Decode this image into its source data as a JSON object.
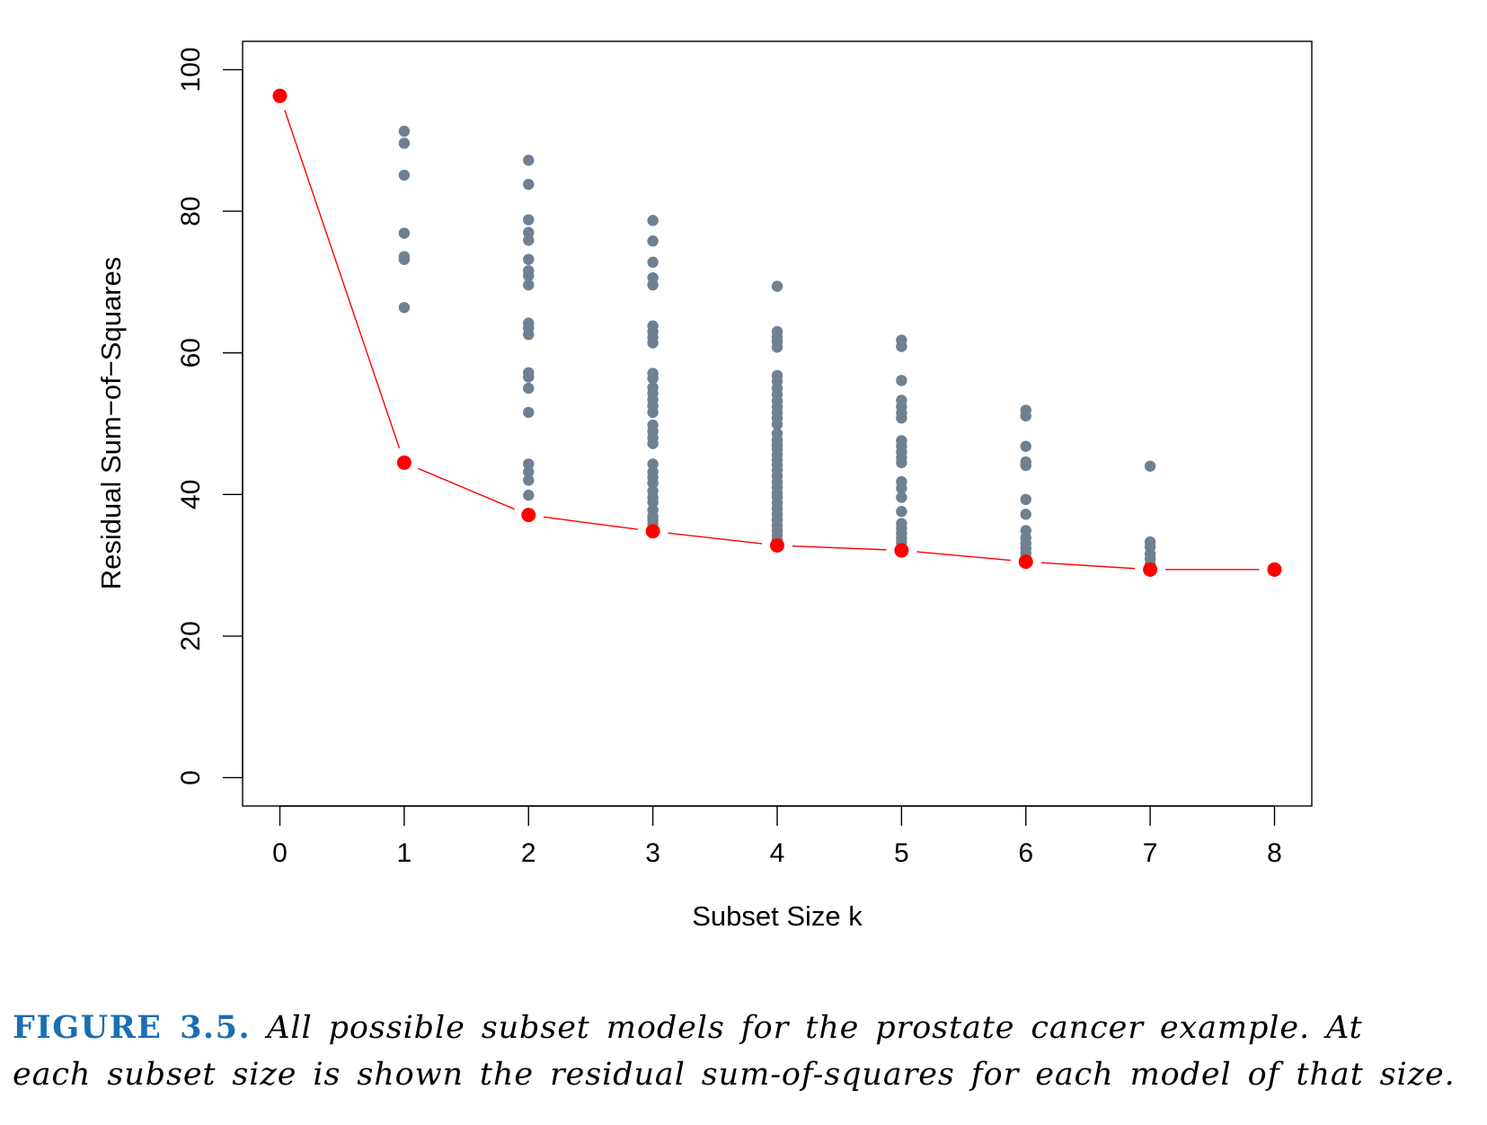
{
  "chart_data": {
    "type": "scatter",
    "xlabel": "Subset Size k",
    "ylabel": "Residual Sum−of−Squares",
    "xlim": [
      -0.3,
      8.3
    ],
    "ylim": [
      -4,
      104
    ],
    "x_ticks": [
      0,
      1,
      2,
      3,
      4,
      5,
      6,
      7,
      8
    ],
    "y_ticks": [
      0,
      20,
      40,
      60,
      80,
      100
    ],
    "grid": false,
    "colors": {
      "all_models": "#708090",
      "best_models": "#ff0000",
      "best_line": "#ff0000"
    },
    "series": [
      {
        "role": "all-models",
        "points": [
          [
            1,
            91.3
          ],
          [
            1,
            89.6
          ],
          [
            1,
            85.1
          ],
          [
            1,
            76.9
          ],
          [
            1,
            73.6
          ],
          [
            1,
            73.2
          ],
          [
            1,
            66.4
          ],
          [
            1,
            44.5
          ],
          [
            2,
            87.2
          ],
          [
            2,
            83.8
          ],
          [
            2,
            78.8
          ],
          [
            2,
            77.0
          ],
          [
            2,
            75.9
          ],
          [
            2,
            73.2
          ],
          [
            2,
            71.6
          ],
          [
            2,
            70.9
          ],
          [
            2,
            69.6
          ],
          [
            2,
            64.2
          ],
          [
            2,
            63.5
          ],
          [
            2,
            62.6
          ],
          [
            2,
            57.2
          ],
          [
            2,
            56.6
          ],
          [
            2,
            55.0
          ],
          [
            2,
            51.6
          ],
          [
            2,
            44.3
          ],
          [
            2,
            43.2
          ],
          [
            2,
            42.0
          ],
          [
            2,
            39.9
          ],
          [
            2,
            37.1
          ],
          [
            3,
            78.7
          ],
          [
            3,
            75.8
          ],
          [
            3,
            72.8
          ],
          [
            3,
            70.6
          ],
          [
            3,
            69.6
          ],
          [
            3,
            63.8
          ],
          [
            3,
            63.0
          ],
          [
            3,
            62.2
          ],
          [
            3,
            61.4
          ],
          [
            3,
            57.1
          ],
          [
            3,
            56.4
          ],
          [
            3,
            55.1
          ],
          [
            3,
            54.3
          ],
          [
            3,
            53.4
          ],
          [
            3,
            52.5
          ],
          [
            3,
            51.6
          ],
          [
            3,
            49.8
          ],
          [
            3,
            48.9
          ],
          [
            3,
            48.0
          ],
          [
            3,
            47.2
          ],
          [
            3,
            44.3
          ],
          [
            3,
            43.2
          ],
          [
            3,
            42.4
          ],
          [
            3,
            41.6
          ],
          [
            3,
            40.5
          ],
          [
            3,
            39.6
          ],
          [
            3,
            38.9
          ],
          [
            3,
            37.8
          ],
          [
            3,
            36.9
          ],
          [
            3,
            36.4
          ],
          [
            3,
            35.8
          ],
          [
            3,
            35.2
          ],
          [
            3,
            34.8
          ],
          [
            4,
            69.4
          ],
          [
            4,
            63.0
          ],
          [
            4,
            62.2
          ],
          [
            4,
            61.6
          ],
          [
            4,
            60.8
          ],
          [
            4,
            56.8
          ],
          [
            4,
            56.0
          ],
          [
            4,
            55.0
          ],
          [
            4,
            54.1
          ],
          [
            4,
            53.2
          ],
          [
            4,
            52.4
          ],
          [
            4,
            51.6
          ],
          [
            4,
            50.8
          ],
          [
            4,
            49.9
          ],
          [
            4,
            48.6
          ],
          [
            4,
            47.7
          ],
          [
            4,
            47.0
          ],
          [
            4,
            46.4
          ],
          [
            4,
            45.6
          ],
          [
            4,
            44.9
          ],
          [
            4,
            44.2
          ],
          [
            4,
            43.4
          ],
          [
            4,
            42.6
          ],
          [
            4,
            41.8
          ],
          [
            4,
            41.0
          ],
          [
            4,
            40.2
          ],
          [
            4,
            39.6
          ],
          [
            4,
            38.8
          ],
          [
            4,
            38.0
          ],
          [
            4,
            37.2
          ],
          [
            4,
            36.4
          ],
          [
            4,
            35.6
          ],
          [
            4,
            34.9
          ],
          [
            4,
            34.2
          ],
          [
            4,
            33.6
          ],
          [
            4,
            32.8
          ],
          [
            5,
            61.8
          ],
          [
            5,
            60.9
          ],
          [
            5,
            56.1
          ],
          [
            5,
            53.3
          ],
          [
            5,
            52.4
          ],
          [
            5,
            51.5
          ],
          [
            5,
            50.8
          ],
          [
            5,
            47.6
          ],
          [
            5,
            46.8
          ],
          [
            5,
            46.0
          ],
          [
            5,
            45.2
          ],
          [
            5,
            44.5
          ],
          [
            5,
            41.8
          ],
          [
            5,
            40.9
          ],
          [
            5,
            39.6
          ],
          [
            5,
            37.6
          ],
          [
            5,
            35.9
          ],
          [
            5,
            35.2
          ],
          [
            5,
            34.5
          ],
          [
            5,
            33.8
          ],
          [
            5,
            33.2
          ],
          [
            5,
            32.6
          ],
          [
            5,
            32.1
          ],
          [
            6,
            51.9
          ],
          [
            6,
            51.1
          ],
          [
            6,
            46.8
          ],
          [
            6,
            44.6
          ],
          [
            6,
            44.1
          ],
          [
            6,
            39.3
          ],
          [
            6,
            37.2
          ],
          [
            6,
            34.9
          ],
          [
            6,
            33.9
          ],
          [
            6,
            33.1
          ],
          [
            6,
            32.4
          ],
          [
            6,
            31.7
          ],
          [
            6,
            31.1
          ],
          [
            6,
            30.5
          ],
          [
            7,
            44.0
          ],
          [
            7,
            33.3
          ],
          [
            7,
            32.6
          ],
          [
            7,
            31.6
          ],
          [
            7,
            30.9
          ],
          [
            7,
            30.1
          ],
          [
            7,
            29.4
          ]
        ]
      },
      {
        "role": "best-models",
        "x": [
          0,
          1,
          2,
          3,
          4,
          5,
          6,
          7,
          8
        ],
        "y": [
          96.3,
          44.5,
          37.1,
          34.8,
          32.8,
          32.1,
          30.5,
          29.4,
          29.4
        ]
      }
    ]
  },
  "caption": {
    "label": "FIGURE 3.5.",
    "text": "All possible subset models for the prostate cancer example. At",
    "text_line2": "each subset size is shown the residual sum-of-squares for each model of that size.",
    "label_color": "#1a6eb5"
  }
}
